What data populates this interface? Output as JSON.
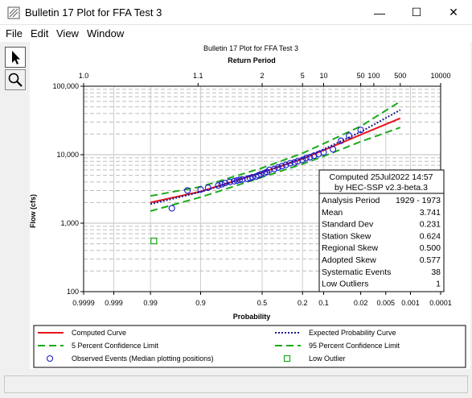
{
  "window": {
    "title": "Bulletin 17 Plot for FFA Test 3",
    "minimize": "—",
    "maximize": "☐",
    "close": "✕"
  },
  "menu": [
    "File",
    "Edit",
    "View",
    "Window"
  ],
  "tools": [
    {
      "name": "pointer-tool",
      "icon": "arrow-pointer-icon"
    },
    {
      "name": "zoom-tool",
      "icon": "magnifier-icon"
    }
  ],
  "plot": {
    "title": "Bulletin 17 Plot for FFA Test 3",
    "top_axis_title": "Return Period",
    "x_axis_title": "Probability",
    "y_axis_title": "Flow (cfs)",
    "return_period_ticks": [
      "1.0",
      "1.1",
      "2",
      "5",
      "10",
      "50",
      "100",
      "500",
      "10000"
    ],
    "probability_ticks": [
      "0.9999",
      "0.999",
      "0.99",
      "0.9",
      "0.5",
      "0.2",
      "0.1",
      "0.02",
      "0.005",
      "0.001",
      "0.0001"
    ],
    "flow_ticks": [
      "100",
      "1,000",
      "10,000",
      "100,000"
    ]
  },
  "stats_box": {
    "computed": "Computed 25Jul2022 14:57",
    "by": "by HEC-SSP v2.3-beta.3",
    "rows": [
      {
        "label": "Analysis Period",
        "value": "1929 - 1973"
      },
      {
        "label": "Mean",
        "value": "3.741"
      },
      {
        "label": "Standard Dev",
        "value": "0.231"
      },
      {
        "label": "Station Skew",
        "value": "0.624"
      },
      {
        "label": "Regional Skew",
        "value": "0.500"
      },
      {
        "label": "Adopted Skew",
        "value": "0.577"
      },
      {
        "label": "Systematic Events",
        "value": "38"
      },
      {
        "label": "Low Outliers",
        "value": "1"
      }
    ]
  },
  "legend": [
    {
      "label": "Computed Curve",
      "style": "solid",
      "color": "#e8141c"
    },
    {
      "label": "Expected Probability Curve",
      "style": "dotted",
      "color": "#1a1a8c"
    },
    {
      "label": "5 Percent Confidence Limit",
      "style": "dashed",
      "color": "#1aaa1a"
    },
    {
      "label": "95 Percent Confidence Limit",
      "style": "dashed",
      "color": "#1aaa1a"
    },
    {
      "label": "Observed Events (Median plotting positions)",
      "style": "circle",
      "color": "#1a1acc"
    },
    {
      "label": "Low Outlier",
      "style": "square",
      "color": "#1aaa1a"
    }
  ],
  "chart_data": {
    "type": "scatter",
    "title": "Bulletin 17 Plot for FFA Test 3",
    "xlabel": "Probability",
    "ylabel": "Flow (cfs)",
    "x_scale": "normal-probability",
    "y_scale": "log",
    "ylim": [
      100,
      100000
    ],
    "grid": true,
    "series": [
      {
        "name": "Computed Curve",
        "kind": "line",
        "color": "#e8141c",
        "x": [
          0.99,
          0.9,
          0.5,
          0.2,
          0.1,
          0.02,
          0.002
        ],
        "y": [
          2000,
          2900,
          5500,
          8700,
          11600,
          19600,
          34000
        ]
      },
      {
        "name": "Expected Probability Curve",
        "kind": "line",
        "color": "#1a1a8c",
        "x": [
          0.99,
          0.9,
          0.5,
          0.2,
          0.1,
          0.02,
          0.002
        ],
        "y": [
          1900,
          2850,
          5500,
          8850,
          12000,
          21500,
          45000
        ]
      },
      {
        "name": "5 Percent Confidence Limit",
        "kind": "line",
        "color": "#1aaa1a",
        "x": [
          0.99,
          0.9,
          0.5,
          0.2,
          0.1,
          0.02,
          0.002
        ],
        "y": [
          1500,
          2400,
          4700,
          7300,
          9500,
          15500,
          25000
        ]
      },
      {
        "name": "95 Percent Confidence Limit",
        "kind": "line",
        "color": "#1aaa1a",
        "x": [
          0.99,
          0.9,
          0.5,
          0.2,
          0.1,
          0.02,
          0.002
        ],
        "y": [
          2500,
          3400,
          6400,
          10500,
          14500,
          26000,
          60000
        ]
      },
      {
        "name": "Observed Events (Median plotting positions)",
        "kind": "points",
        "color": "#1a1acc",
        "x": [
          0.97,
          0.94,
          0.9,
          0.87,
          0.82,
          0.8,
          0.78,
          0.75,
          0.72,
          0.7,
          0.68,
          0.66,
          0.62,
          0.6,
          0.58,
          0.55,
          0.53,
          0.51,
          0.48,
          0.46,
          0.44,
          0.4,
          0.37,
          0.34,
          0.31,
          0.28,
          0.25,
          0.23,
          0.2,
          0.18,
          0.16,
          0.14,
          0.12,
          0.1,
          0.07,
          0.05,
          0.035,
          0.02
        ],
        "y": [
          1650,
          3000,
          3100,
          3300,
          3550,
          3700,
          3850,
          4000,
          4100,
          4200,
          4300,
          4350,
          4450,
          4550,
          4700,
          4800,
          5000,
          5200,
          5400,
          5600,
          6000,
          6200,
          6500,
          6800,
          7100,
          7500,
          7700,
          8000,
          8400,
          8900,
          9200,
          9700,
          10200,
          10800,
          12000,
          16000,
          19000,
          23000
        ]
      },
      {
        "name": "Low Outlier",
        "kind": "points",
        "color": "#1aaa1a",
        "x": [
          0.988
        ],
        "y": [
          550
        ]
      }
    ]
  }
}
